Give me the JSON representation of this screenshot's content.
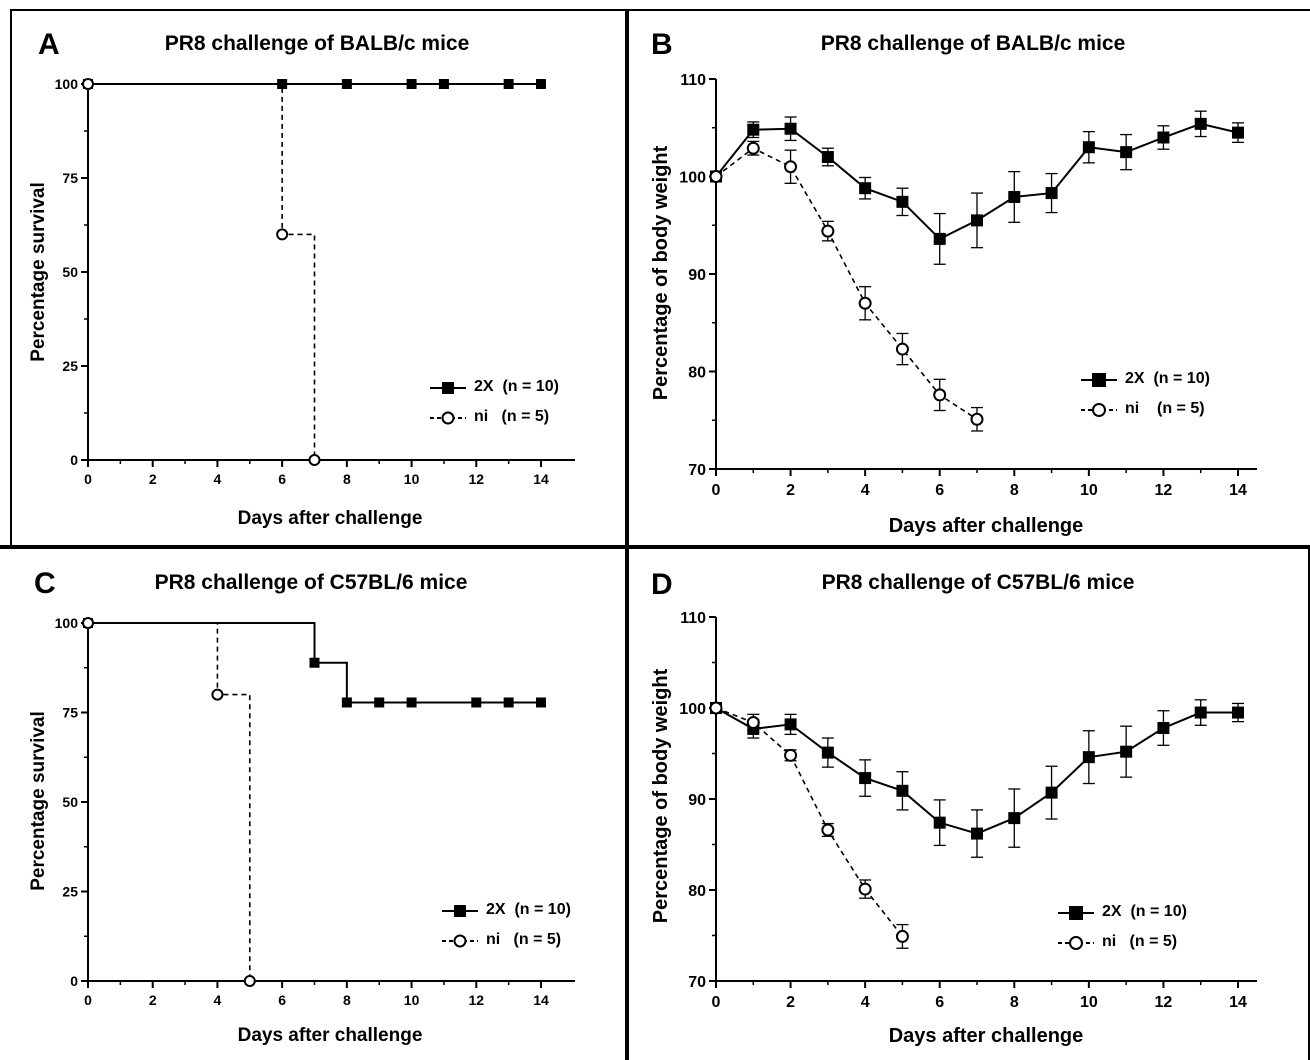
{
  "colors": {
    "line": "#000000",
    "background": "#ffffff",
    "open_marker_fill": "#ffffff"
  },
  "panels": [
    {
      "letter": "A",
      "title": "PR8 challenge of BALB/c mice",
      "xlabel": "Days after challenge",
      "ylabel": "Percentage survival",
      "legend": [
        {
          "label": "2X  (n = 10)",
          "marker": "filled-square",
          "line": "solid"
        },
        {
          "label": "ni   (n = 5)",
          "marker": "open-circle",
          "line": "dashed"
        }
      ]
    },
    {
      "letter": "B",
      "title": "PR8 challenge of BALB/c mice",
      "xlabel": "Days after challenge",
      "ylabel": "Percentage of body weight",
      "legend": [
        {
          "label": "2X  (n = 10)",
          "marker": "filled-square",
          "line": "solid"
        },
        {
          "label": "ni    (n = 5)",
          "marker": "open-circle",
          "line": "dashed"
        }
      ]
    },
    {
      "letter": "C",
      "title": "PR8 challenge of C57BL/6 mice",
      "xlabel": "Days after challenge",
      "ylabel": "Percentage survival",
      "legend": [
        {
          "label": "2X  (n = 10)",
          "marker": "filled-square",
          "line": "solid"
        },
        {
          "label": "ni   (n = 5)",
          "marker": "open-circle",
          "line": "dashed"
        }
      ]
    },
    {
      "letter": "D",
      "title": "PR8 challenge of C57BL/6 mice",
      "xlabel": "Days after challenge",
      "ylabel": "Percentage of body weight",
      "legend": [
        {
          "label": "2X  (n = 10)",
          "marker": "filled-square",
          "line": "solid"
        },
        {
          "label": "ni   (n = 5)",
          "marker": "open-circle",
          "line": "dashed"
        }
      ]
    }
  ],
  "chart_data": [
    {
      "panel": "A",
      "type": "line",
      "subtype": "kaplan-meier survival",
      "title": "PR8 challenge of BALB/c mice",
      "xlabel": "Days after challenge",
      "ylabel": "Percentage survival",
      "xlim": [
        0,
        14
      ],
      "ylim": [
        0,
        100
      ],
      "xticks": [
        0,
        2,
        4,
        6,
        8,
        10,
        12,
        14
      ],
      "yticks": [
        0,
        25,
        50,
        75,
        100
      ],
      "legend_position": "bottom-right",
      "series": [
        {
          "name": "2X  (n = 10)",
          "line": "solid",
          "marker": "filled-square",
          "x": [
            0,
            6,
            8,
            10,
            11,
            13,
            14
          ],
          "y": [
            100,
            100,
            100,
            100,
            100,
            100,
            100
          ]
        },
        {
          "name": "ni   (n = 5)",
          "line": "dashed",
          "marker": "open-circle",
          "x": [
            0,
            6,
            7
          ],
          "y": [
            100,
            60,
            0
          ]
        }
      ]
    },
    {
      "panel": "B",
      "type": "line",
      "title": "PR8 challenge of BALB/c mice",
      "xlabel": "Days after challenge",
      "ylabel": "Percentage of body weight",
      "xlim": [
        0,
        14
      ],
      "ylim": [
        70,
        110
      ],
      "xticks": [
        0,
        2,
        4,
        6,
        8,
        10,
        12,
        14
      ],
      "yticks": [
        70,
        80,
        90,
        100,
        110
      ],
      "legend_position": "bottom-right",
      "series": [
        {
          "name": "2X  (n = 10)",
          "line": "solid",
          "marker": "filled-square",
          "x": [
            0,
            1,
            2,
            3,
            4,
            5,
            6,
            7,
            8,
            9,
            10,
            11,
            12,
            13,
            14
          ],
          "y": [
            100,
            104.8,
            104.9,
            102,
            98.8,
            97.4,
            93.6,
            95.5,
            97.9,
            98.3,
            103,
            102.5,
            104,
            105.4,
            104.5
          ],
          "err": [
            0,
            0.8,
            1.2,
            0.9,
            1.1,
            1.4,
            2.6,
            2.8,
            2.6,
            2.0,
            1.6,
            1.8,
            1.2,
            1.3,
            1.0
          ]
        },
        {
          "name": "ni    (n = 5)",
          "line": "dashed",
          "marker": "open-circle",
          "x": [
            0,
            1,
            2,
            3,
            4,
            5,
            6,
            7
          ],
          "y": [
            100,
            102.9,
            101,
            94.4,
            87,
            82.3,
            77.6,
            75.1
          ],
          "err": [
            0,
            0.7,
            1.7,
            1.0,
            1.7,
            1.6,
            1.6,
            1.2
          ]
        }
      ]
    },
    {
      "panel": "C",
      "type": "line",
      "subtype": "kaplan-meier survival",
      "title": "PR8 challenge of C57BL/6 mice",
      "xlabel": "Days after challenge",
      "ylabel": "Percentage survival",
      "xlim": [
        0,
        14
      ],
      "ylim": [
        0,
        100
      ],
      "xticks": [
        0,
        2,
        4,
        6,
        8,
        10,
        12,
        14
      ],
      "yticks": [
        0,
        25,
        50,
        75,
        100
      ],
      "legend_position": "bottom-right",
      "series": [
        {
          "name": "2X  (n = 10)",
          "line": "solid",
          "marker": "filled-square",
          "x": [
            0,
            7,
            8,
            9,
            10,
            12,
            13,
            14
          ],
          "y": [
            100,
            88.9,
            77.8,
            77.8,
            77.8,
            77.8,
            77.8,
            77.8
          ]
        },
        {
          "name": "ni   (n = 5)",
          "line": "dashed",
          "marker": "open-circle",
          "x": [
            0,
            4,
            5
          ],
          "y": [
            100,
            80,
            0
          ]
        }
      ]
    },
    {
      "panel": "D",
      "type": "line",
      "title": "PR8 challenge of C57BL/6 mice",
      "xlabel": "Days after challenge",
      "ylabel": "Percentage of body weight",
      "xlim": [
        0,
        14
      ],
      "ylim": [
        70,
        110
      ],
      "xticks": [
        0,
        2,
        4,
        6,
        8,
        10,
        12,
        14
      ],
      "yticks": [
        70,
        80,
        90,
        100,
        110
      ],
      "legend_position": "bottom-right",
      "series": [
        {
          "name": "2X  (n = 10)",
          "line": "solid",
          "marker": "filled-square",
          "x": [
            0,
            1,
            2,
            3,
            4,
            5,
            6,
            7,
            8,
            9,
            10,
            11,
            12,
            13,
            14
          ],
          "y": [
            100,
            97.7,
            98.2,
            95.1,
            92.3,
            90.9,
            87.4,
            86.2,
            87.9,
            90.7,
            94.6,
            95.2,
            97.8,
            99.5,
            99.5
          ],
          "err": [
            0,
            1.0,
            1.1,
            1.6,
            2.0,
            2.1,
            2.5,
            2.6,
            3.2,
            2.9,
            2.9,
            2.8,
            1.9,
            1.4,
            1.0
          ]
        },
        {
          "name": "ni   (n = 5)",
          "line": "dashed",
          "marker": "open-circle",
          "x": [
            0,
            1,
            2,
            3,
            4,
            5
          ],
          "y": [
            100,
            98.4,
            94.8,
            86.6,
            80.1,
            74.9
          ],
          "err": [
            0,
            0.9,
            0.6,
            0.7,
            1.0,
            1.3
          ]
        }
      ]
    }
  ]
}
